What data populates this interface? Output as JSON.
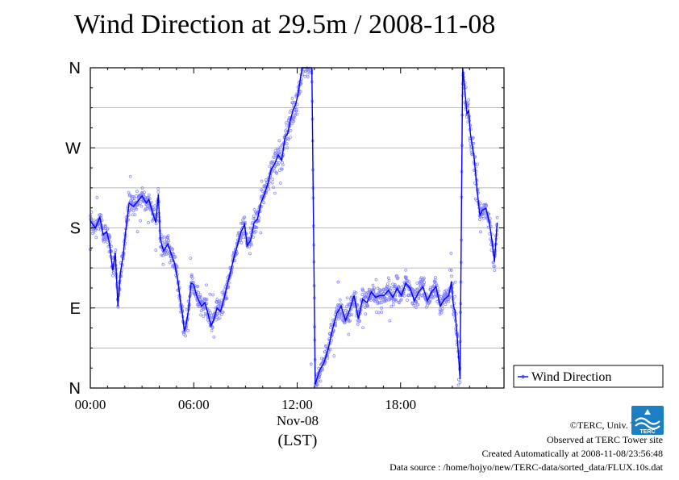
{
  "chart_data": {
    "type": "scatter",
    "title": "Wind Direction at 29.5m / 2008-11-08",
    "xlabel_date": "Nov-08",
    "xlabel_zone": "(LST)",
    "x_ticks": [
      "00:00",
      "06:00",
      "12:00",
      "18:00"
    ],
    "y_ticks": [
      "N",
      "E",
      "S",
      "W",
      "N"
    ],
    "y_tick_degrees": [
      0,
      90,
      180,
      270,
      360
    ],
    "xlim_hours": [
      0,
      24
    ],
    "ylim_degrees": [
      0,
      360
    ],
    "grid": true,
    "legend": {
      "placement": "right",
      "entry": "Wind Direction"
    },
    "series": [
      {
        "name": "Wind Direction",
        "color": "#0000ff",
        "point_color": "#7f7fff",
        "hours": [
          0.0,
          0.3,
          0.55,
          0.75,
          0.95,
          1.1,
          1.3,
          1.45,
          1.6,
          1.75,
          1.9,
          2.05,
          2.25,
          2.5,
          2.75,
          3.0,
          3.25,
          3.4,
          3.6,
          3.8,
          3.95,
          4.05,
          4.25,
          4.5,
          4.7,
          4.9,
          5.1,
          5.25,
          5.35,
          5.45,
          5.55,
          5.7,
          5.85,
          6.0,
          6.2,
          6.45,
          6.65,
          6.85,
          7.0,
          7.15,
          7.35,
          7.55,
          7.75,
          7.95,
          8.15,
          8.35,
          8.55,
          8.75,
          8.95,
          9.1,
          9.3,
          9.5,
          9.7,
          9.9,
          10.1,
          10.3,
          10.5,
          10.7,
          10.9,
          11.1,
          11.3,
          11.45,
          11.6,
          11.75,
          11.9,
          12.05,
          12.2,
          12.3,
          12.4,
          12.5,
          12.65,
          12.85,
          13.05,
          13.3,
          13.55,
          13.8,
          14.05,
          14.3,
          14.55,
          14.8,
          15.05,
          15.3,
          15.55,
          15.8,
          16.05,
          16.3,
          16.55,
          16.8,
          17.05,
          17.3,
          17.55,
          17.8,
          18.05,
          18.3,
          18.55,
          18.8,
          19.05,
          19.3,
          19.55,
          19.8,
          20.05,
          20.3,
          20.55,
          20.8,
          20.95,
          21.05,
          21.1,
          21.15,
          21.3,
          21.45,
          21.6,
          21.75,
          21.85,
          21.95,
          22.05,
          22.25,
          22.45,
          22.6,
          22.75,
          22.95,
          23.15,
          23.3,
          23.45,
          23.6
        ],
        "degrees": [
          188,
          180,
          192,
          172,
          176,
          164,
          132,
          152,
          92,
          130,
          148,
          176,
          208,
          204,
          210,
          216,
          208,
          212,
          198,
          186,
          218,
          168,
          154,
          162,
          150,
          140,
          118,
          94,
          82,
          64,
          70,
          88,
          118,
          116,
          102,
          92,
          96,
          82,
          70,
          76,
          90,
          86,
          100,
          116,
          132,
          148,
          162,
          176,
          184,
          160,
          166,
          186,
          190,
          208,
          218,
          230,
          246,
          252,
          262,
          256,
          282,
          286,
          300,
          312,
          318,
          330,
          350,
          362,
          364,
          366,
          364,
          362,
          4,
          20,
          28,
          44,
          66,
          84,
          92,
          76,
          88,
          104,
          78,
          100,
          96,
          108,
          102,
          104,
          104,
          110,
          102,
          112,
          104,
          118,
          112,
          98,
          108,
          114,
          98,
          108,
          114,
          92,
          100,
          104,
          120,
          96,
          90,
          88,
          54,
          10,
          366,
          330,
          308,
          312,
          286,
          262,
          220,
          194,
          200,
          202,
          186,
          166,
          142,
          186
        ]
      }
    ]
  },
  "credits": {
    "copyright": "©TERC, Univ. Tsukuba",
    "observed": "Observed at TERC Tower site",
    "created": "Created Automatically at 2008-11-08/23:56:48",
    "source": "Data source : /home/hojyo/new/TERC-data/sorted_data/FLUX.10s.dat"
  },
  "logo": {
    "text": "TERC",
    "icon": "terc-logo-icon",
    "color": "#1b7fc4"
  }
}
